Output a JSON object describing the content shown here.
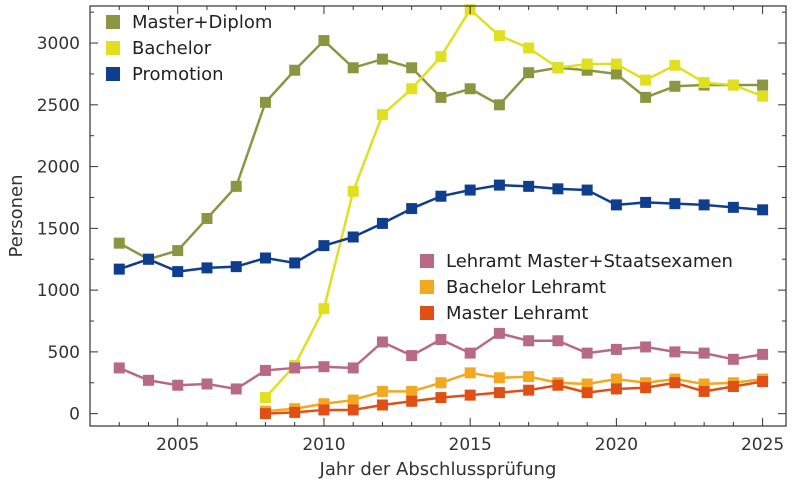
{
  "chart_data": {
    "type": "line",
    "title": "",
    "xlabel": "Jahr der Abschlussprüfung",
    "ylabel": "Personen",
    "xlim": [
      2002,
      2025.8
    ],
    "ylim": [
      -100,
      3300
    ],
    "x_ticks": [
      2005,
      2010,
      2015,
      2020,
      2025
    ],
    "y_ticks": [
      0,
      500,
      1000,
      1500,
      2000,
      2500,
      3000
    ],
    "grid": false,
    "legends": [
      {
        "placement": "top-left",
        "series": [
          "Master+Diplom",
          "Bachelor",
          "Promotion"
        ]
      },
      {
        "placement": "center-right",
        "series": [
          "Lehramt Master+Staatsexamen",
          "Bachelor Lehramt",
          "Master Lehramt"
        ]
      }
    ],
    "series": [
      {
        "name": "Master+Diplom",
        "color": "#8c9642",
        "x": [
          2003,
          2004,
          2005,
          2006,
          2007,
          2008,
          2009,
          2010,
          2011,
          2012,
          2013,
          2014,
          2015,
          2016,
          2017,
          2018,
          2019,
          2020,
          2021,
          2022,
          2023,
          2024,
          2025
        ],
        "values": [
          1380,
          1250,
          1320,
          1580,
          1840,
          2520,
          2780,
          3020,
          2800,
          2870,
          2800,
          2560,
          2630,
          2500,
          2760,
          2800,
          2780,
          2750,
          2560,
          2650,
          2660,
          2660,
          2660
        ]
      },
      {
        "name": "Bachelor",
        "color": "#e0e020",
        "x": [
          2008,
          2009,
          2010,
          2011,
          2012,
          2013,
          2014,
          2015,
          2016,
          2017,
          2018,
          2019,
          2020,
          2021,
          2022,
          2023,
          2024,
          2025
        ],
        "values": [
          130,
          390,
          850,
          1800,
          2420,
          2630,
          2890,
          3270,
          3060,
          2960,
          2800,
          2830,
          2830,
          2700,
          2820,
          2680,
          2660,
          2570
        ]
      },
      {
        "name": "Promotion",
        "color": "#0f3e8e",
        "x": [
          2003,
          2004,
          2005,
          2006,
          2007,
          2008,
          2009,
          2010,
          2011,
          2012,
          2013,
          2014,
          2015,
          2016,
          2017,
          2018,
          2019,
          2020,
          2021,
          2022,
          2023,
          2024,
          2025
        ],
        "values": [
          1170,
          1250,
          1150,
          1180,
          1190,
          1260,
          1220,
          1360,
          1430,
          1540,
          1660,
          1760,
          1810,
          1850,
          1840,
          1820,
          1810,
          1690,
          1710,
          1700,
          1690,
          1670,
          1650
        ]
      },
      {
        "name": "Lehramt Master+Staatsexamen",
        "color": "#b86a84",
        "x": [
          2003,
          2004,
          2005,
          2006,
          2007,
          2008,
          2009,
          2010,
          2011,
          2012,
          2013,
          2014,
          2015,
          2016,
          2017,
          2018,
          2019,
          2020,
          2021,
          2022,
          2023,
          2024,
          2025
        ],
        "values": [
          370,
          270,
          230,
          240,
          200,
          350,
          370,
          380,
          370,
          580,
          470,
          600,
          490,
          650,
          590,
          590,
          490,
          520,
          540,
          500,
          490,
          440,
          480
        ]
      },
      {
        "name": "Bachelor Lehramt",
        "color": "#f2a820",
        "x": [
          2008,
          2009,
          2010,
          2011,
          2012,
          2013,
          2014,
          2015,
          2016,
          2017,
          2018,
          2019,
          2020,
          2021,
          2022,
          2023,
          2024,
          2025
        ],
        "values": [
          20,
          40,
          80,
          110,
          180,
          180,
          250,
          330,
          290,
          300,
          250,
          240,
          280,
          250,
          280,
          240,
          250,
          280
        ]
      },
      {
        "name": "Master Lehramt",
        "color": "#e05016",
        "x": [
          2008,
          2009,
          2010,
          2011,
          2012,
          2013,
          2014,
          2015,
          2016,
          2017,
          2018,
          2019,
          2020,
          2021,
          2022,
          2023,
          2024,
          2025
        ],
        "values": [
          0,
          10,
          30,
          30,
          70,
          100,
          130,
          150,
          170,
          190,
          230,
          170,
          200,
          210,
          250,
          180,
          220,
          260
        ]
      }
    ]
  }
}
